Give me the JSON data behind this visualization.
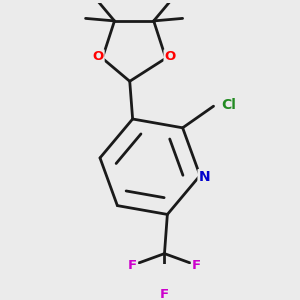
{
  "bg_color": "#ebebeb",
  "bond_color": "#1a1a1a",
  "bond_width": 2.0,
  "atom_colors": {
    "O": "#ff0000",
    "N": "#0000cc",
    "Cl": "#228b22",
    "F": "#cc00cc",
    "C": "#1a1a1a"
  },
  "figsize": [
    3.0,
    3.0
  ],
  "dpi": 100
}
